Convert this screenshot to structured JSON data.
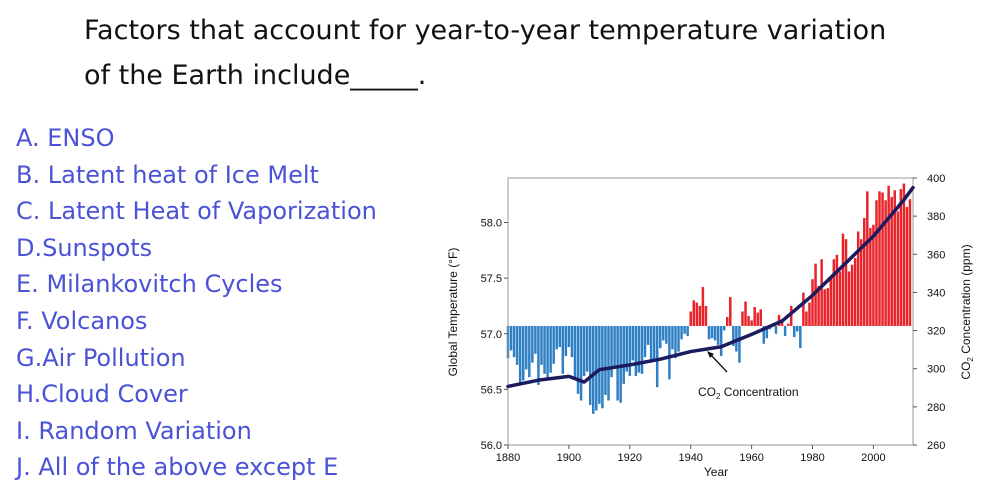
{
  "question": {
    "line1": "Factors that account for year-to-year temperature variation",
    "line2": "of the Earth include_____."
  },
  "answers": [
    {
      "letter": "A.",
      "text": "ENSO"
    },
    {
      "letter": "B.",
      "text": "Latent heat of Ice Melt"
    },
    {
      "letter": "C.",
      "text": "Latent Heat of Vaporization"
    },
    {
      "letter": "D.",
      "text": "Sunspots"
    },
    {
      "letter": "E.",
      "text": "Milankovitch Cycles"
    },
    {
      "letter": "F.",
      "text": "Volcanos"
    },
    {
      "letter": "G.",
      "text": "Air Pollution"
    },
    {
      "letter": "H.",
      "text": "Cloud Cover"
    },
    {
      "letter": "I.",
      "text": "Random Variation"
    },
    {
      "letter": "J.",
      "text": "All of the above except E"
    }
  ],
  "colors": {
    "answer_text": "#4a52d6",
    "warm_bar": "#e8242b",
    "cool_bar": "#2f7fc4",
    "co2_line": "#1b1b5e"
  },
  "chart_data": {
    "type": "bar",
    "xlabel": "Year",
    "ylabel_left": "Global Temperature (°F)",
    "ylabel_right_parts": {
      "pre": "CO",
      "sub": "2",
      "post": " Concentration (ppm)"
    },
    "annotation_parts": {
      "pre": "CO",
      "sub": "2",
      "post": " Concentration"
    },
    "xlim": [
      1880,
      2013
    ],
    "x_ticks": [
      "1880",
      "1900",
      "1920",
      "1940",
      "1960",
      "1980",
      "2000"
    ],
    "ylim_left": [
      56.0,
      58.4
    ],
    "left_ticks": [
      "56.0",
      "56.5",
      "57.0",
      "57.5",
      "58.0"
    ],
    "ylim_right": [
      260,
      400
    ],
    "right_ticks": [
      "260",
      "280",
      "300",
      "320",
      "340",
      "360",
      "380",
      "400"
    ],
    "baseline": 57.07,
    "grid": false,
    "years": [
      1880,
      1881,
      1882,
      1883,
      1884,
      1885,
      1886,
      1887,
      1888,
      1889,
      1890,
      1891,
      1892,
      1893,
      1894,
      1895,
      1896,
      1897,
      1898,
      1899,
      1900,
      1901,
      1902,
      1903,
      1904,
      1905,
      1906,
      1907,
      1908,
      1909,
      1910,
      1911,
      1912,
      1913,
      1914,
      1915,
      1916,
      1917,
      1918,
      1919,
      1920,
      1921,
      1922,
      1923,
      1924,
      1925,
      1926,
      1927,
      1928,
      1929,
      1930,
      1931,
      1932,
      1933,
      1934,
      1935,
      1936,
      1937,
      1938,
      1939,
      1940,
      1941,
      1942,
      1943,
      1944,
      1945,
      1946,
      1947,
      1948,
      1949,
      1950,
      1951,
      1952,
      1953,
      1954,
      1955,
      1956,
      1957,
      1958,
      1959,
      1960,
      1961,
      1962,
      1963,
      1964,
      1965,
      1966,
      1967,
      1968,
      1969,
      1970,
      1971,
      1972,
      1973,
      1974,
      1975,
      1976,
      1977,
      1978,
      1979,
      1980,
      1981,
      1982,
      1983,
      1984,
      1985,
      1986,
      1987,
      1988,
      1989,
      1990,
      1991,
      1992,
      1993,
      1994,
      1995,
      1996,
      1997,
      1998,
      1999,
      2000,
      2001,
      2002,
      2003,
      2004,
      2005,
      2006,
      2007,
      2008,
      2009,
      2010,
      2011,
      2012
    ],
    "temperature_f": [
      56.78,
      56.85,
      56.79,
      56.72,
      56.55,
      56.58,
      56.68,
      56.61,
      56.74,
      56.82,
      56.54,
      56.72,
      56.64,
      56.6,
      56.65,
      56.73,
      56.86,
      56.88,
      56.64,
      56.8,
      56.88,
      56.79,
      56.6,
      56.46,
      56.4,
      56.62,
      56.66,
      56.36,
      56.28,
      56.31,
      56.37,
      56.33,
      56.45,
      56.4,
      56.61,
      56.69,
      56.4,
      56.38,
      56.55,
      56.66,
      56.62,
      56.76,
      56.62,
      56.65,
      56.64,
      56.79,
      56.9,
      56.74,
      56.75,
      56.52,
      56.87,
      56.94,
      56.91,
      56.59,
      56.86,
      56.78,
      56.84,
      56.95,
      57.0,
      56.98,
      57.2,
      57.3,
      57.28,
      57.25,
      57.42,
      57.25,
      56.95,
      56.96,
      56.94,
      56.9,
      56.8,
      57.03,
      57.15,
      57.33,
      56.89,
      56.84,
      56.74,
      57.2,
      57.29,
      57.16,
      57.12,
      57.24,
      57.19,
      57.22,
      56.91,
      56.96,
      57.04,
      57.08,
      57.0,
      57.17,
      57.13,
      56.98,
      57.09,
      57.25,
      56.97,
      57.02,
      56.87,
      57.37,
      57.2,
      57.28,
      57.49,
      57.63,
      57.43,
      57.67,
      57.4,
      57.41,
      57.5,
      57.67,
      57.71,
      57.56,
      57.9,
      57.85,
      57.56,
      57.62,
      57.68,
      57.92,
      57.85,
      58.04,
      58.28,
      57.95,
      57.98,
      58.2,
      58.28,
      58.27,
      58.2,
      58.33,
      58.23,
      58.29,
      58.1,
      58.3,
      58.35,
      58.14,
      58.21
    ],
    "co2_ppm": [
      {
        "year": 1880,
        "ppm": 290.7
      },
      {
        "year": 1890,
        "ppm": 294.0
      },
      {
        "year": 1900,
        "ppm": 296.0
      },
      {
        "year": 1905,
        "ppm": 293.0
      },
      {
        "year": 1910,
        "ppm": 299.5
      },
      {
        "year": 1920,
        "ppm": 302.0
      },
      {
        "year": 1930,
        "ppm": 305.0
      },
      {
        "year": 1940,
        "ppm": 309.0
      },
      {
        "year": 1950,
        "ppm": 311.5
      },
      {
        "year": 1960,
        "ppm": 318.0
      },
      {
        "year": 1970,
        "ppm": 325.0
      },
      {
        "year": 1980,
        "ppm": 338.5
      },
      {
        "year": 1990,
        "ppm": 354.0
      },
      {
        "year": 2000,
        "ppm": 369.5
      },
      {
        "year": 2010,
        "ppm": 388.5
      },
      {
        "year": 2013,
        "ppm": 395.0
      }
    ]
  }
}
